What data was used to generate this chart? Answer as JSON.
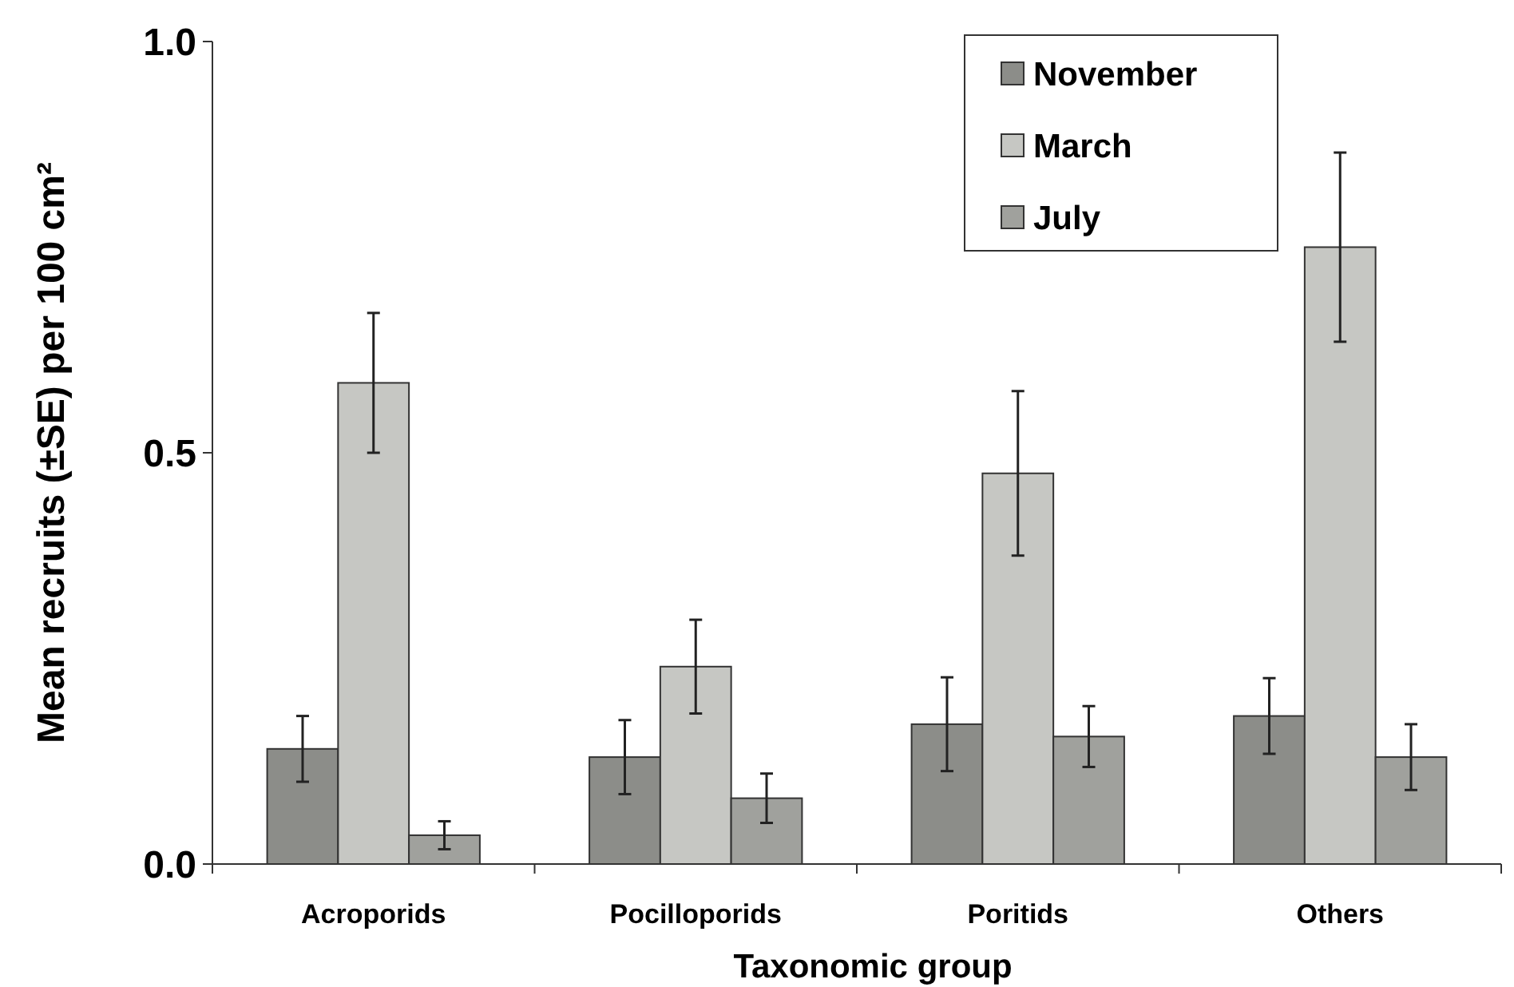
{
  "chart_data": {
    "type": "bar",
    "xlabel": "Taxonomic group",
    "ylabel": "Mean recruits (±SE) per 100 cm²",
    "categories": [
      "Acroporids",
      "Pocilloporids",
      "Poritids",
      "Others"
    ],
    "series": [
      {
        "name": "November",
        "color": "#8c8d89",
        "values": [
          0.14,
          0.13,
          0.17,
          0.18
        ],
        "errors": [
          0.04,
          0.045,
          0.057,
          0.046
        ]
      },
      {
        "name": "March",
        "color": "#c6c7c3",
        "values": [
          0.585,
          0.24,
          0.475,
          0.75
        ],
        "errors": [
          0.085,
          0.057,
          0.1,
          0.115
        ]
      },
      {
        "name": "July",
        "color": "#a0a19d",
        "values": [
          0.035,
          0.08,
          0.155,
          0.13
        ],
        "errors": [
          0.017,
          0.03,
          0.037,
          0.04
        ]
      }
    ],
    "ylim": [
      0,
      1
    ],
    "yticks": [
      {
        "value": 0,
        "label": "0.0"
      },
      {
        "value": 0.5,
        "label": "0.5"
      },
      {
        "value": 1,
        "label": "1.0"
      }
    ],
    "legend": "top right",
    "grid": false
  }
}
